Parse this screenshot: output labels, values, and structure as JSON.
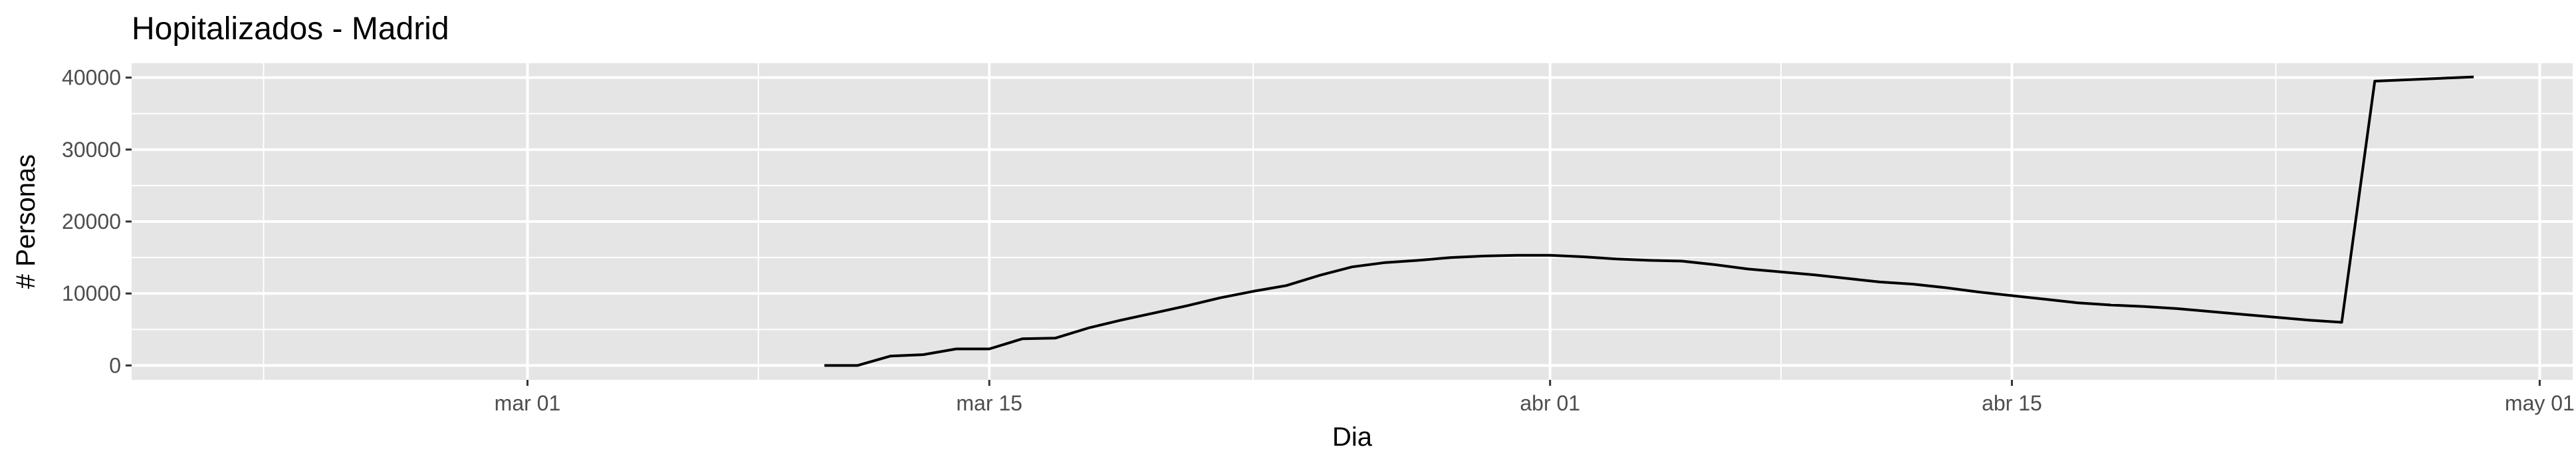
{
  "chart_data": {
    "type": "line",
    "title": "Hopitalizados - Madrid",
    "xlabel": "Dia",
    "ylabel": "# Personas",
    "xlim": [
      "2020-02-18",
      "2020-05-02"
    ],
    "ylim": [
      -2000,
      42000
    ],
    "x_ticks": [
      {
        "date": "2020-03-01",
        "label": "mar 01"
      },
      {
        "date": "2020-03-15",
        "label": "mar 15"
      },
      {
        "date": "2020-04-01",
        "label": "abr 01"
      },
      {
        "date": "2020-04-15",
        "label": "abr 15"
      },
      {
        "date": "2020-05-01",
        "label": "may 01"
      }
    ],
    "x_minor_ticks": [
      "2020-02-22",
      "2020-03-08",
      "2020-03-23",
      "2020-04-08",
      "2020-04-23"
    ],
    "y_ticks": [
      0,
      10000,
      20000,
      30000,
      40000
    ],
    "y_tick_labels": [
      "0",
      "10000",
      "20000",
      "30000",
      "40000"
    ],
    "grid": true,
    "legend": "none",
    "colors": {
      "panel_background": "#e5e5e5",
      "grid": "#ffffff",
      "line": "#000000",
      "tick_label": "#4d4d4d"
    },
    "series": [
      {
        "x": [
          "2020-03-10",
          "2020-03-11",
          "2020-03-12",
          "2020-03-13",
          "2020-03-14",
          "2020-03-15",
          "2020-03-16",
          "2020-03-17",
          "2020-03-18",
          "2020-03-19",
          "2020-03-20",
          "2020-03-21",
          "2020-03-22",
          "2020-03-23",
          "2020-03-24",
          "2020-03-25",
          "2020-03-26",
          "2020-03-27",
          "2020-03-28",
          "2020-03-29",
          "2020-03-30",
          "2020-03-31",
          "2020-04-01",
          "2020-04-02",
          "2020-04-03",
          "2020-04-04",
          "2020-04-05",
          "2020-04-06",
          "2020-04-07",
          "2020-04-08",
          "2020-04-09",
          "2020-04-10",
          "2020-04-11",
          "2020-04-12",
          "2020-04-13",
          "2020-04-14",
          "2020-04-15",
          "2020-04-16",
          "2020-04-17",
          "2020-04-18",
          "2020-04-19",
          "2020-04-20",
          "2020-04-21",
          "2020-04-22",
          "2020-04-23",
          "2020-04-24",
          "2020-04-25",
          "2020-04-26",
          "2020-04-27",
          "2020-04-28",
          "2020-04-29"
        ],
        "values": [
          0,
          0,
          1300,
          1500,
          2300,
          2300,
          3700,
          3800,
          5200,
          6300,
          7300,
          8300,
          9400,
          10300,
          11100,
          12500,
          13700,
          14300,
          14600,
          15000,
          15200,
          15300,
          15300,
          15100,
          14800,
          14600,
          14500,
          14000,
          13400,
          13000,
          12600,
          12100,
          11600,
          11300,
          10800,
          10200,
          9700,
          9200,
          8700,
          8400,
          8200,
          7900,
          7500,
          7100,
          6700,
          6300,
          6000,
          39500,
          39700,
          39900,
          40100
        ]
      }
    ]
  }
}
